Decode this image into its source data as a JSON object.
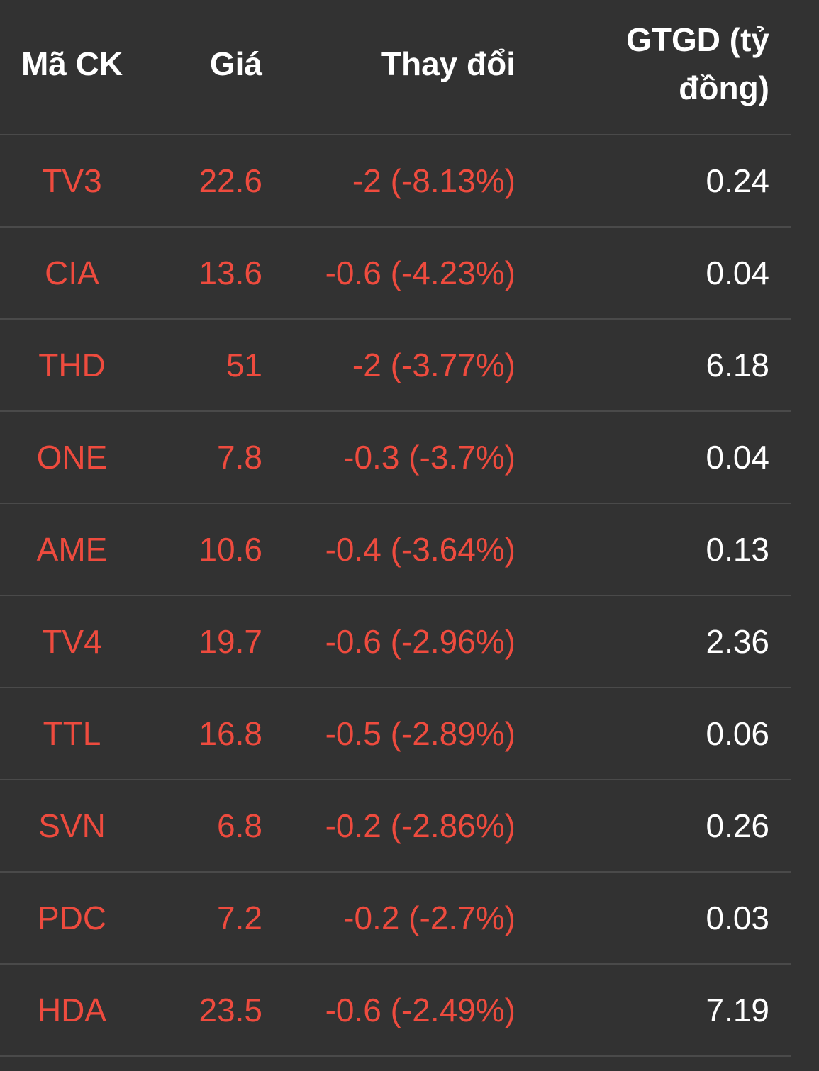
{
  "colors": {
    "background": "#323232",
    "divider": "#4a4a4a",
    "header_text": "#ffffff",
    "decrease": "#ee4b3e",
    "value_text": "#ffffff"
  },
  "header": {
    "code": "Mã CK",
    "price": "Giá",
    "change": "Thay đổi",
    "value_line1": "GTGD (tỷ",
    "value_line2": "đồng)"
  },
  "rows": [
    {
      "code": "TV3",
      "price": "22.6",
      "change": "-2 (-8.13%)",
      "value": "0.24"
    },
    {
      "code": "CIA",
      "price": "13.6",
      "change": "-0.6 (-4.23%)",
      "value": "0.04"
    },
    {
      "code": "THD",
      "price": "51",
      "change": "-2 (-3.77%)",
      "value": "6.18"
    },
    {
      "code": "ONE",
      "price": "7.8",
      "change": "-0.3 (-3.7%)",
      "value": "0.04"
    },
    {
      "code": "AME",
      "price": "10.6",
      "change": "-0.4 (-3.64%)",
      "value": "0.13"
    },
    {
      "code": "TV4",
      "price": "19.7",
      "change": "-0.6 (-2.96%)",
      "value": "2.36"
    },
    {
      "code": "TTL",
      "price": "16.8",
      "change": "-0.5 (-2.89%)",
      "value": "0.06"
    },
    {
      "code": "SVN",
      "price": "6.8",
      "change": "-0.2 (-2.86%)",
      "value": "0.26"
    },
    {
      "code": "PDC",
      "price": "7.2",
      "change": "-0.2 (-2.7%)",
      "value": "0.03"
    },
    {
      "code": "HDA",
      "price": "23.5",
      "change": "-0.6 (-2.49%)",
      "value": "7.19"
    }
  ]
}
